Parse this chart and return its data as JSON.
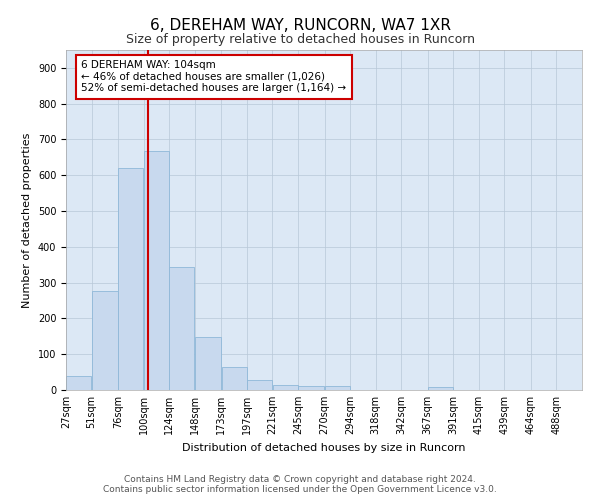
{
  "title": "6, DEREHAM WAY, RUNCORN, WA7 1XR",
  "subtitle": "Size of property relative to detached houses in Runcorn",
  "xlabel": "Distribution of detached houses by size in Runcorn",
  "ylabel": "Number of detached properties",
  "bar_color": "#c8d9ee",
  "bar_edge_color": "#8fb8d8",
  "plot_bg_color": "#dce8f5",
  "background_color": "#ffffff",
  "grid_color": "#b8c8d8",
  "vline_x": 104,
  "vline_color": "#cc0000",
  "annotation_text": "6 DEREHAM WAY: 104sqm\n← 46% of detached houses are smaller (1,026)\n52% of semi-detached houses are larger (1,164) →",
  "annotation_box_color": "#ffffff",
  "annotation_box_edge": "#cc0000",
  "bins": [
    27,
    51,
    76,
    100,
    124,
    148,
    173,
    197,
    221,
    245,
    270,
    294,
    318,
    342,
    367,
    391,
    415,
    439,
    464,
    488,
    512
  ],
  "bar_heights": [
    40,
    278,
    620,
    668,
    345,
    148,
    65,
    28,
    14,
    12,
    10,
    0,
    0,
    0,
    8,
    0,
    0,
    0,
    0,
    0
  ],
  "ylim": [
    0,
    950
  ],
  "yticks": [
    0,
    100,
    200,
    300,
    400,
    500,
    600,
    700,
    800,
    900
  ],
  "footer_text": "Contains HM Land Registry data © Crown copyright and database right 2024.\nContains public sector information licensed under the Open Government Licence v3.0.",
  "title_fontsize": 11,
  "subtitle_fontsize": 9,
  "axis_label_fontsize": 8,
  "tick_fontsize": 7,
  "annotation_fontsize": 7.5,
  "footer_fontsize": 6.5
}
